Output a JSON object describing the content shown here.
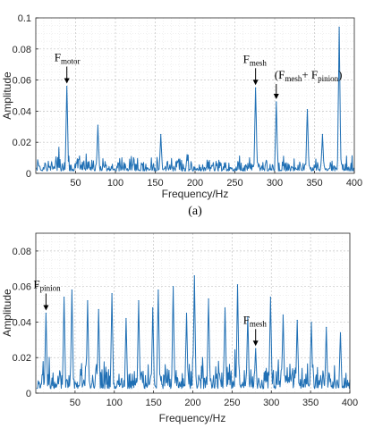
{
  "chart_data": [
    {
      "type": "line",
      "caption": "(a)",
      "xlabel": "Frequency/Hz",
      "ylabel": "Amplitude",
      "xlim": [
        0,
        400
      ],
      "ylim": [
        0,
        0.1
      ],
      "xticks": [
        "50",
        "100",
        "150",
        "200",
        "250",
        "300",
        "350",
        "400"
      ],
      "yticks": [
        "0",
        "0.02",
        "0.04",
        "0.06",
        "0.08",
        "0.1"
      ],
      "grid": true,
      "color": "#1f6fb4",
      "peaks": [
        {
          "x": 39,
          "y": 0.056
        },
        {
          "x": 78,
          "y": 0.031
        },
        {
          "x": 157,
          "y": 0.025
        },
        {
          "x": 190,
          "y": 0.012
        },
        {
          "x": 276,
          "y": 0.055
        },
        {
          "x": 302,
          "y": 0.046
        },
        {
          "x": 341,
          "y": 0.041
        },
        {
          "x": 360,
          "y": 0.025
        },
        {
          "x": 381,
          "y": 0.094
        }
      ],
      "annotations": [
        {
          "main": "F",
          "sub": "motor",
          "x": 39,
          "y": 0.056
        },
        {
          "main": "F",
          "sub": "mesh",
          "x": 276,
          "y": 0.055
        },
        {
          "pre": "(F",
          "sub": "mesh",
          "mid": "+ F",
          "sub2": "pinion",
          "post": ")",
          "x": 302,
          "y": 0.046
        }
      ]
    },
    {
      "type": "line",
      "xlabel": "Frequency/Hz",
      "ylabel": "Amplitude",
      "xlim": [
        0,
        400
      ],
      "ylim": [
        0,
        0.09
      ],
      "xticks": [
        "50",
        "100",
        "150",
        "200",
        "250",
        "300",
        "350",
        "400"
      ],
      "yticks": [
        "0",
        "0.02",
        "0.04",
        "0.06",
        "0.08"
      ],
      "grid": true,
      "color": "#1f6fb4",
      "peaks": [
        {
          "x": 13,
          "y": 0.045
        },
        {
          "x": 36,
          "y": 0.054
        },
        {
          "x": 46,
          "y": 0.058
        },
        {
          "x": 66,
          "y": 0.052
        },
        {
          "x": 80,
          "y": 0.047
        },
        {
          "x": 97,
          "y": 0.056
        },
        {
          "x": 115,
          "y": 0.042
        },
        {
          "x": 131,
          "y": 0.052
        },
        {
          "x": 149,
          "y": 0.048
        },
        {
          "x": 156,
          "y": 0.058
        },
        {
          "x": 175,
          "y": 0.06
        },
        {
          "x": 192,
          "y": 0.045
        },
        {
          "x": 202,
          "y": 0.066
        },
        {
          "x": 220,
          "y": 0.053
        },
        {
          "x": 241,
          "y": 0.048
        },
        {
          "x": 257,
          "y": 0.061
        },
        {
          "x": 270,
          "y": 0.043
        },
        {
          "x": 280,
          "y": 0.025
        },
        {
          "x": 299,
          "y": 0.054
        },
        {
          "x": 315,
          "y": 0.044
        },
        {
          "x": 333,
          "y": 0.041
        },
        {
          "x": 351,
          "y": 0.04
        },
        {
          "x": 370,
          "y": 0.037
        },
        {
          "x": 388,
          "y": 0.034
        }
      ],
      "annotations": [
        {
          "main": "F",
          "sub": "pinion",
          "x": 13,
          "y": 0.045
        },
        {
          "main": "F",
          "sub": "mesh",
          "x": 280,
          "y": 0.025
        }
      ]
    }
  ]
}
